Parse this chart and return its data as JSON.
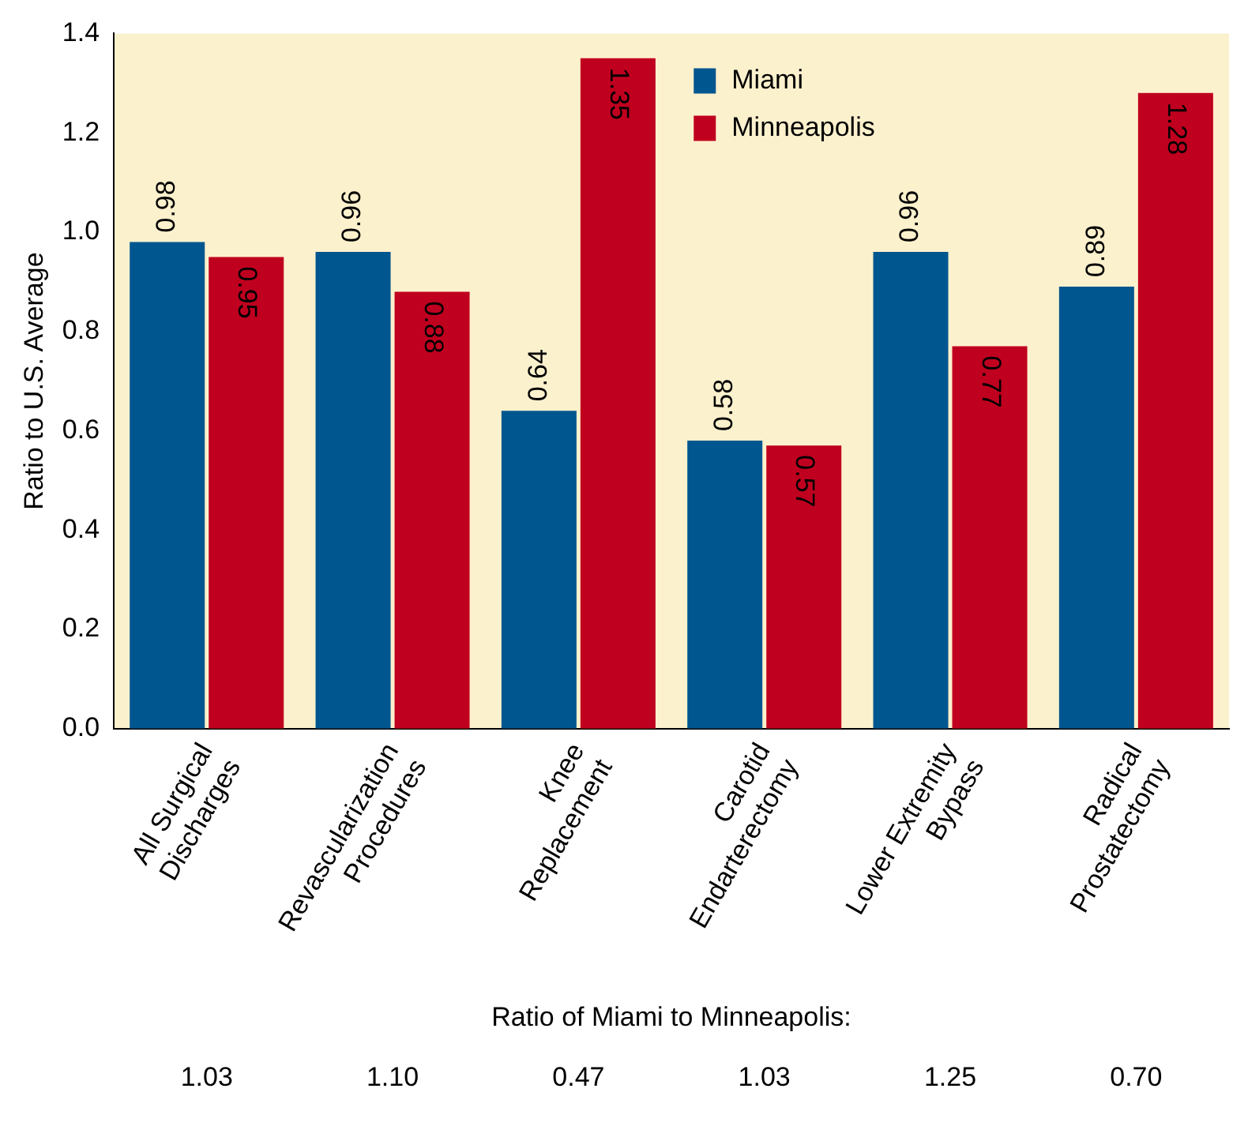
{
  "chart_data": {
    "type": "bar",
    "ylabel": "Ratio to U.S. Average",
    "categories": [
      "All Surgical Discharges",
      "Revascularization Procedures",
      "Knee Replacement",
      "Carotid Endarterectomy",
      "Lower Extremity Bypass",
      "Radical Prostatectomy"
    ],
    "series": [
      {
        "name": "Miami",
        "color": "#00568f",
        "values": [
          0.98,
          0.96,
          0.64,
          0.58,
          0.96,
          0.89
        ]
      },
      {
        "name": "Minneapolis",
        "color": "#c0001f",
        "values": [
          0.95,
          0.88,
          1.35,
          0.57,
          0.77,
          1.28
        ]
      }
    ],
    "ylim": [
      0,
      1.4
    ],
    "yticks": [
      {
        "value": 0,
        "label": "0.0"
      },
      {
        "value": 0.2,
        "label": "0.2"
      },
      {
        "value": 0.4,
        "label": "0.4"
      },
      {
        "value": 0.6,
        "label": "0.6"
      },
      {
        "value": 0.8,
        "label": "0.8"
      },
      {
        "value": 1,
        "label": "1.0"
      },
      {
        "value": 1.2,
        "label": "1.2"
      },
      {
        "value": 1.4,
        "label": "1.4"
      }
    ],
    "data_labels": true,
    "grid": false,
    "legend": "top",
    "annotations": [
      "Ratio of Miami to Minneapolis:",
      "1.03",
      "1.10",
      "0.47",
      "1.03",
      "1.25",
      "0.70"
    ]
  }
}
